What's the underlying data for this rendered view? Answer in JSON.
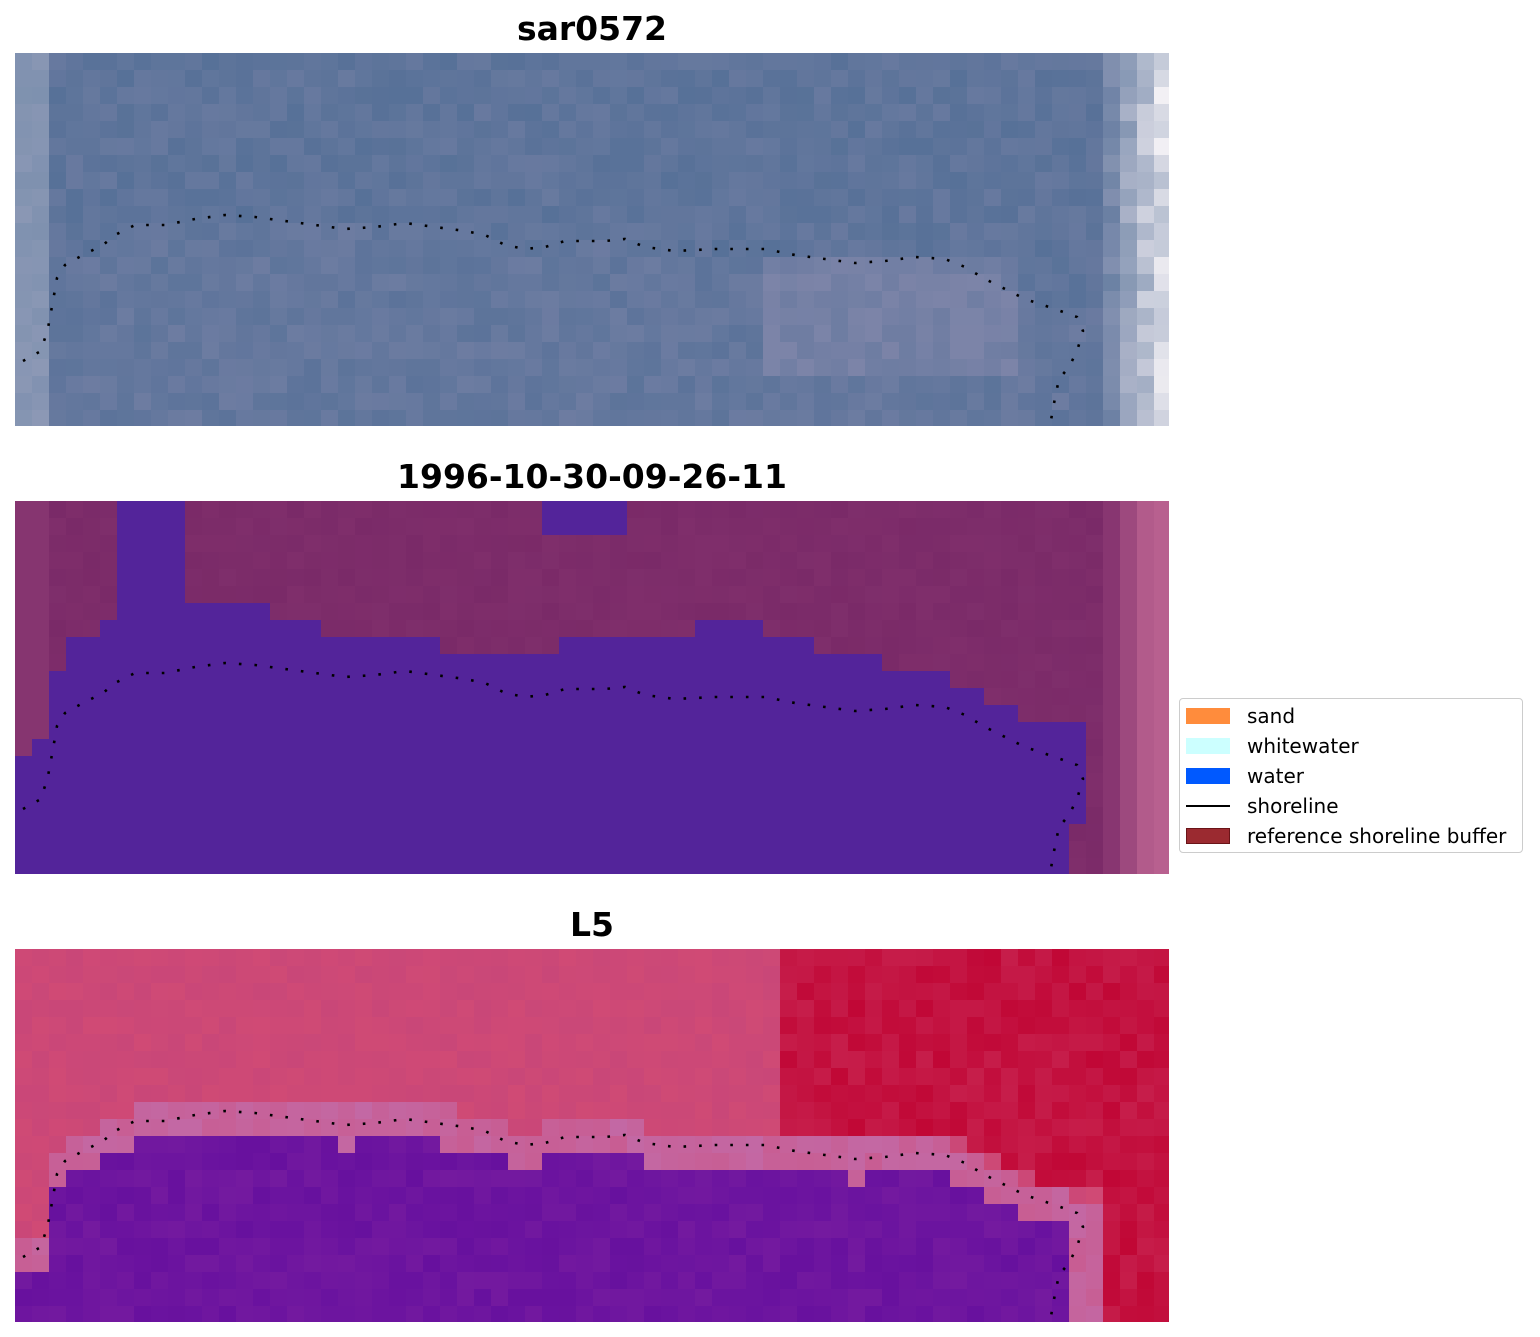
{
  "panels": [
    {
      "title": "sar0572",
      "style": "rgb"
    },
    {
      "title": "1996-10-30-09-26-11",
      "style": "classified"
    },
    {
      "title": "L5",
      "style": "index"
    }
  ],
  "legend": {
    "items": [
      {
        "label": "sand",
        "color": "#ff8c3c",
        "kind": "patch"
      },
      {
        "label": "whitewater",
        "color": "#ccffff",
        "kind": "patch"
      },
      {
        "label": "water",
        "color": "#0059ff",
        "kind": "patch"
      },
      {
        "label": "shoreline",
        "color": "#000000",
        "kind": "line"
      },
      {
        "label": "reference shoreline buffer",
        "color": "#9b2a30",
        "kind": "patch"
      }
    ]
  },
  "colors": {
    "rgb_water": "#4a6a92",
    "rgb_land": "#7c84a8",
    "rgb_bright": "#f2f0f4",
    "class_water": "#53249a",
    "class_land": "#7a2a68",
    "class_edge": "#b8608f",
    "index_water": "#5e0a9e",
    "index_land": "#d04a75",
    "index_red": "#c0002e",
    "shoreline": "#000000"
  }
}
